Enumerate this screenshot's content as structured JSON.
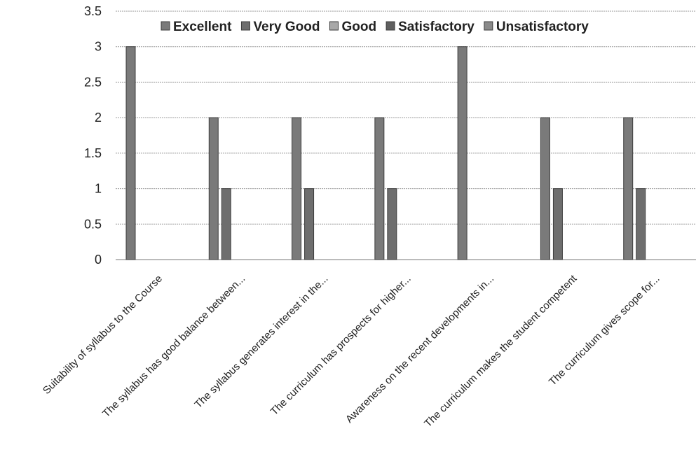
{
  "chart_data": {
    "type": "bar",
    "categories": [
      "Suitability of syllabus to the Course",
      "The syllabus  has good  balance  between...",
      "The syllabus generates interest in the...",
      "The  curriculum  has  prospects  for  higher...",
      "Awareness on the recent developments in...",
      "The curriculum makes the student competent",
      "The  curriculum  gives  scope for..."
    ],
    "series": [
      {
        "name": "Excellent",
        "values": [
          3,
          2,
          2,
          2,
          3,
          2,
          2
        ]
      },
      {
        "name": "Very Good",
        "values": [
          0,
          1,
          1,
          1,
          0,
          1,
          1
        ]
      },
      {
        "name": "Good",
        "values": [
          0,
          0,
          0,
          0,
          0,
          0,
          0
        ]
      },
      {
        "name": "Satisfactory",
        "values": [
          0,
          0,
          0,
          0,
          0,
          0,
          0
        ]
      },
      {
        "name": "Unsatisfactory",
        "values": [
          0,
          0,
          0,
          0,
          0,
          0,
          0
        ]
      }
    ],
    "colors": [
      "#7a7a7a",
      "#6e6e6e",
      "#a8a8a8",
      "#5f5f5f",
      "#8a8a8a"
    ],
    "yticks": [
      "0",
      "0.5",
      "1",
      "1.5",
      "2",
      "2.5",
      "3",
      "3.5"
    ],
    "ylim": [
      0,
      3.5
    ],
    "title": "",
    "xlabel": "",
    "ylabel": "",
    "grid": true,
    "legend_position": "top"
  }
}
